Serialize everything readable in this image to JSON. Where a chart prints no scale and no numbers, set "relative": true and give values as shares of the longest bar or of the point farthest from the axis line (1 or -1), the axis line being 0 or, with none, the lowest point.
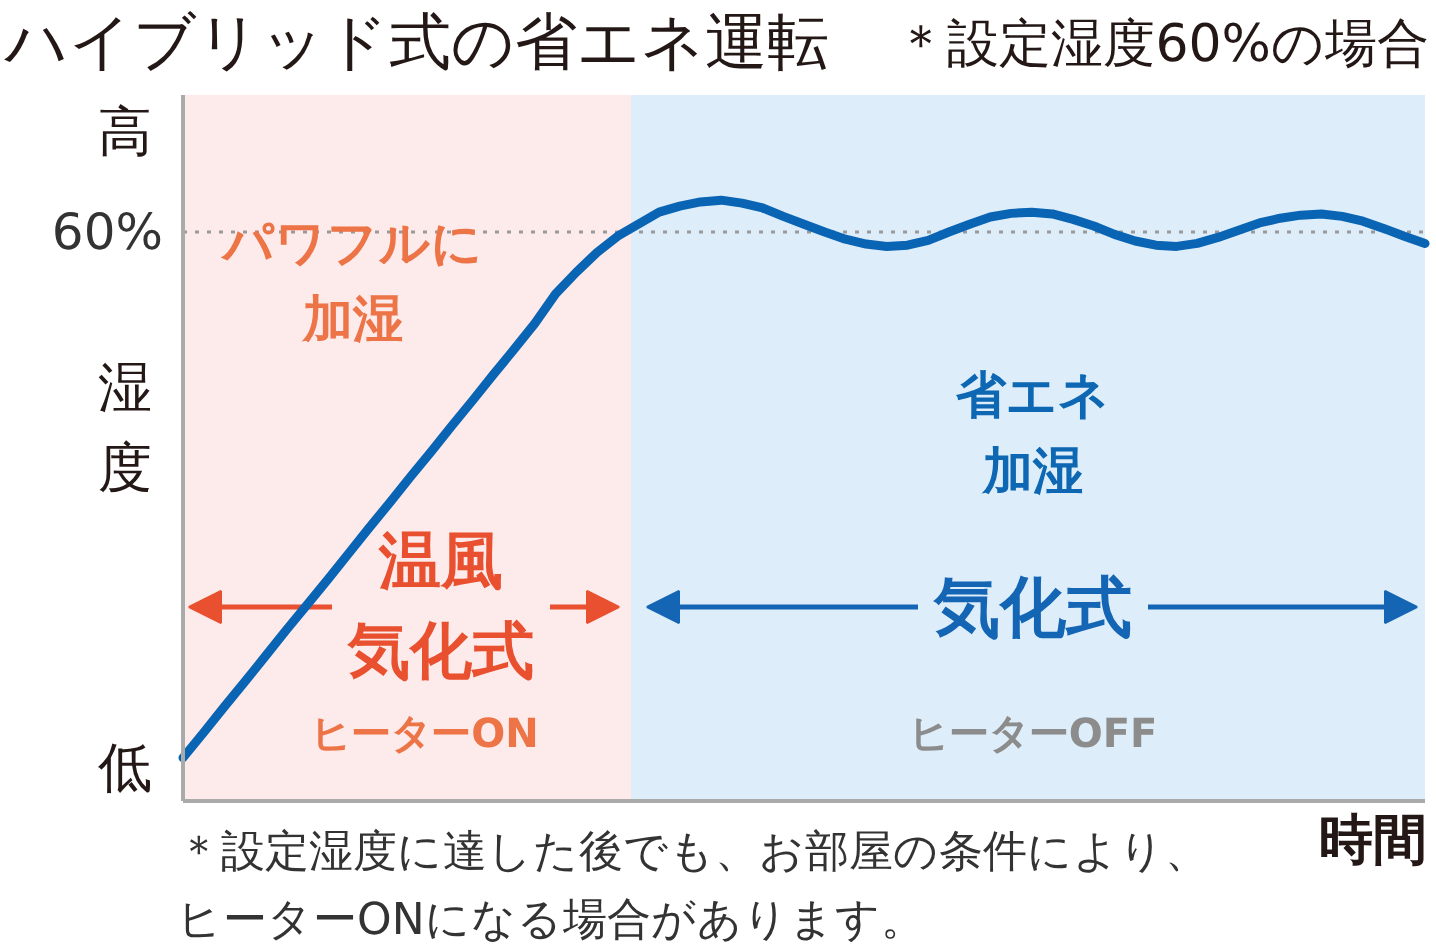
{
  "chart_data": {
    "type": "line",
    "title": "ハイブリッド式の省エネ運転",
    "subtitle": "＊設定湿度60%の場合",
    "xlabel": "時間",
    "ylabel": "湿度",
    "relative": true,
    "categories": [
      null,
      null,
      null,
      null,
      null,
      null,
      null,
      null,
      null,
      null,
      null,
      null,
      null,
      null,
      null,
      null,
      null,
      null,
      null,
      null,
      null,
      null,
      null,
      null,
      null,
      null,
      null,
      null,
      null,
      null,
      null,
      null,
      null,
      null,
      null,
      null,
      null,
      null,
      null,
      null,
      null,
      null,
      null,
      null,
      null,
      null,
      null,
      null,
      null,
      null,
      null,
      null,
      null,
      null,
      null,
      null,
      null,
      null,
      null,
      null,
      null
    ],
    "series": [
      {
        "color": "#0a64b4",
        "values": [
          0.072,
          0.114,
          0.157,
          0.199,
          0.242,
          0.285,
          0.327,
          0.369,
          0.412,
          0.455,
          0.497,
          0.54,
          0.582,
          0.625,
          0.667,
          0.71,
          0.752,
          0.795,
          0.844,
          0.88,
          0.913,
          0.94,
          0.96,
          0.98,
          0.99,
          0.997,
          1.0,
          0.995,
          0.987,
          0.973,
          0.96,
          0.947,
          0.935,
          0.927,
          0.923,
          0.925,
          0.933,
          0.947,
          0.96,
          0.972,
          0.978,
          0.98,
          0.977,
          0.968,
          0.957,
          0.943,
          0.932,
          0.925,
          0.923,
          0.928,
          0.938,
          0.95,
          0.962,
          0.97,
          0.975,
          0.977,
          0.973,
          0.965,
          0.953,
          0.94,
          0.928
        ]
      }
    ],
    "ref_lines": [
      {
        "axis": "y",
        "value": 0.947,
        "color": "#999999",
        "line_style": "dotted"
      }
    ],
    "annotations": [
      "高",
      "低",
      "60%",
      "パワフルに加湿",
      "省エネ加湿",
      "温風気化式",
      "気化式",
      "ヒーターON",
      "ヒーターOFF",
      "＊設定湿度に達した後でも、お部屋の条件により、ヒーターONになる場合があります。"
    ]
  }
}
